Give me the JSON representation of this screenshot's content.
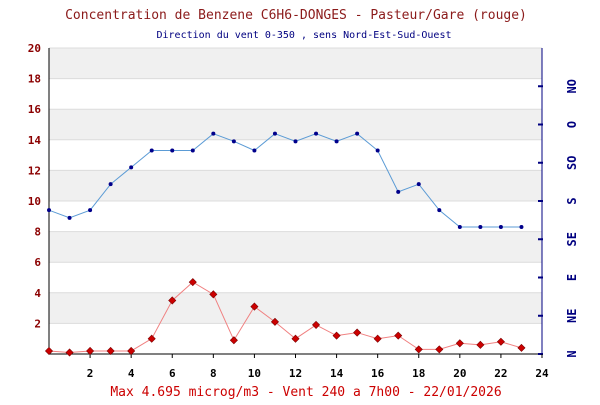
{
  "header": {
    "title": "Concentration de Benzene C6H6-DONGES - Pasteur/Gare (rouge)",
    "subtitle": "Direction du vent 0-350 , sens Nord-Est-Sud-Ouest"
  },
  "footer": {
    "text": "Max 4.695 microg/m3 - Vent 240  a 7h00 - 22/01/2026"
  },
  "colors": {
    "title": "#8b1a1a",
    "subtitle": "#000080",
    "footer": "#cc0000",
    "left_axis": "#8b0000",
    "right_axis": "#000080",
    "x_axis": "#000000",
    "band": "#f0f0f0",
    "grid": "#dcdcdc",
    "benzene_line": "#f08080",
    "benzene_marker": "#cc0000",
    "wind_line": "#5b9bd5",
    "wind_marker": "#00008b"
  },
  "chart_data": {
    "type": "line",
    "title": "Concentration de Benzene C6H6-DONGES - Pasteur/Gare (rouge)",
    "subtitle": "Direction du vent 0-350 , sens Nord-Est-Sud-Ouest",
    "x": [
      0,
      1,
      2,
      3,
      4,
      5,
      6,
      7,
      8,
      9,
      10,
      11,
      12,
      13,
      14,
      15,
      16,
      17,
      18,
      19,
      20,
      21,
      22,
      23
    ],
    "xlim": [
      0,
      24
    ],
    "xticks": [
      "2",
      "4",
      "6",
      "8",
      "10",
      "12",
      "14",
      "16",
      "18",
      "20",
      "22",
      "24"
    ],
    "ylim": [
      0,
      20
    ],
    "yticks": [
      "2",
      "4",
      "6",
      "8",
      "10",
      "12",
      "14",
      "16",
      "18",
      "20"
    ],
    "right_axis": {
      "ticks": [
        "N",
        "NE",
        "E",
        "SE",
        "S",
        "SO",
        "O",
        "NO"
      ],
      "ylim": [
        0,
        8
      ]
    },
    "series": [
      {
        "name": "",
        "axis": "left",
        "color": "#cc0000",
        "values": [
          0.2,
          0.1,
          0.2,
          0.2,
          0.2,
          1.0,
          3.5,
          4.7,
          3.9,
          0.9,
          3.1,
          2.1,
          1.0,
          1.9,
          1.2,
          1.4,
          1.0,
          1.2,
          0.3,
          0.3,
          0.7,
          0.6,
          0.8,
          0.4
        ]
      },
      {
        "name": "",
        "axis": "left",
        "color": "#00008b",
        "values": [
          9.4,
          8.9,
          9.4,
          11.1,
          12.2,
          13.3,
          13.3,
          13.3,
          14.4,
          13.9,
          13.3,
          14.4,
          13.9,
          14.4,
          13.9,
          14.4,
          13.3,
          10.6,
          11.1,
          9.4,
          8.3,
          8.3,
          8.3,
          8.3
        ]
      }
    ],
    "grid": true,
    "legend": "none"
  }
}
